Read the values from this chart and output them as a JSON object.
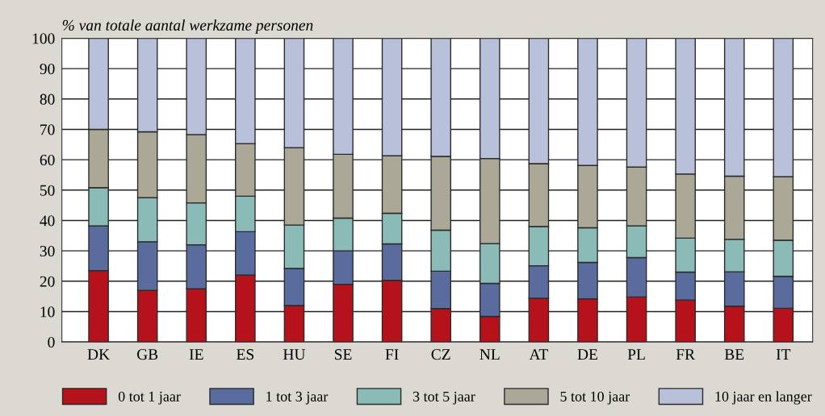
{
  "chart_data": {
    "type": "bar",
    "stacked": true,
    "ylabel": "% van totale aantal werkzame personen",
    "categories": [
      "DK",
      "GB",
      "IE",
      "ES",
      "HU",
      "SE",
      "FI",
      "CZ",
      "NL",
      "AT",
      "DE",
      "PL",
      "FR",
      "BE",
      "IT"
    ],
    "series": [
      {
        "name": "0 tot 1 jaar",
        "color": "#b5121b",
        "values": [
          23.5,
          17,
          17.5,
          22,
          12,
          19,
          20.3,
          11,
          8.4,
          14.4,
          14.2,
          14.8,
          13.8,
          11.8,
          11.1
        ]
      },
      {
        "name": "1 tot 3 jaar",
        "color": "#5a6c9e",
        "values": [
          14.7,
          16,
          14.5,
          14.3,
          12.2,
          11,
          12,
          12.3,
          10.9,
          10.7,
          12,
          13,
          9.2,
          11.3,
          10.5
        ]
      },
      {
        "name": "3 tot 5 jaar",
        "color": "#8bbbb6",
        "values": [
          12.6,
          14.5,
          13.8,
          11.7,
          14.3,
          10.8,
          10.1,
          13.5,
          13.1,
          12.9,
          11.4,
          10.4,
          11.2,
          10.7,
          11.9
        ]
      },
      {
        "name": "5 tot 10 jaar",
        "color": "#aba897",
        "values": [
          19.2,
          21.7,
          22.5,
          17.3,
          25.5,
          21,
          18.9,
          24.3,
          28,
          20.7,
          20.5,
          19.4,
          21.1,
          20.8,
          20.9
        ]
      },
      {
        "name": "10 jaar en langer",
        "color": "#b8c0da",
        "values": [
          30,
          30.8,
          31.7,
          34.7,
          36,
          38.2,
          38.7,
          38.9,
          39.6,
          41.3,
          41.9,
          42.4,
          44.7,
          45.4,
          45.6
        ]
      }
    ],
    "ylim": [
      0,
      100
    ],
    "yticks": [
      0,
      10,
      20,
      30,
      40,
      50,
      60,
      70,
      80,
      90,
      100
    ],
    "grid": "y",
    "legend": "bottom"
  }
}
